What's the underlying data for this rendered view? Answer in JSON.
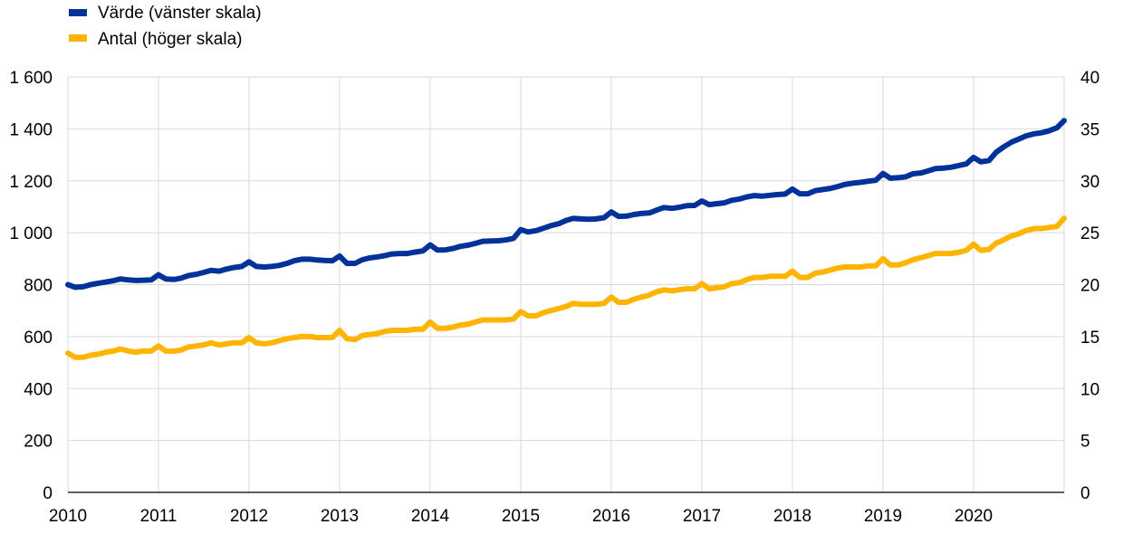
{
  "chart_data": {
    "type": "line",
    "legend_placement": "top-left",
    "grid": true,
    "x_tick_labels": [
      "2010",
      "2011",
      "2012",
      "2013",
      "2014",
      "2015",
      "2016",
      "2017",
      "2018",
      "2019",
      "2020"
    ],
    "x_range": [
      2010,
      2021
    ],
    "y_left": {
      "lim": [
        0,
        1600
      ],
      "ticks": [
        0,
        200,
        400,
        600,
        800,
        1000,
        1200,
        1400,
        1600
      ],
      "tick_labels": [
        "0",
        "200",
        "400",
        "600",
        "800",
        "1 000",
        "1 200",
        "1 400",
        "1 600"
      ]
    },
    "y_right": {
      "lim": [
        0,
        40
      ],
      "ticks": [
        0,
        5,
        10,
        15,
        20,
        25,
        30,
        35,
        40
      ],
      "tick_labels": [
        "0",
        "5",
        "10",
        "15",
        "20",
        "25",
        "30",
        "35",
        "40"
      ]
    },
    "series": [
      {
        "name": "Värde (vänster skala)",
        "axis": "left",
        "color": "#003299",
        "x": [
          2010.0,
          2010.08,
          2010.17,
          2010.25,
          2010.33,
          2010.42,
          2010.5,
          2010.58,
          2010.67,
          2010.75,
          2010.83,
          2010.92,
          2011.0,
          2011.08,
          2011.17,
          2011.25,
          2011.33,
          2011.42,
          2011.5,
          2011.58,
          2011.67,
          2011.75,
          2011.83,
          2011.92,
          2012.0,
          2012.08,
          2012.17,
          2012.25,
          2012.33,
          2012.42,
          2012.5,
          2012.58,
          2012.67,
          2012.75,
          2012.83,
          2012.92,
          2013.0,
          2013.08,
          2013.17,
          2013.25,
          2013.33,
          2013.42,
          2013.5,
          2013.58,
          2013.67,
          2013.75,
          2013.83,
          2013.92,
          2014.0,
          2014.08,
          2014.17,
          2014.25,
          2014.33,
          2014.42,
          2014.5,
          2014.58,
          2014.67,
          2014.75,
          2014.83,
          2014.92,
          2015.0,
          2015.08,
          2015.17,
          2015.25,
          2015.33,
          2015.42,
          2015.5,
          2015.58,
          2015.67,
          2015.75,
          2015.83,
          2015.92,
          2016.0,
          2016.08,
          2016.17,
          2016.25,
          2016.33,
          2016.42,
          2016.5,
          2016.58,
          2016.67,
          2016.75,
          2016.83,
          2016.92,
          2017.0,
          2017.08,
          2017.17,
          2017.25,
          2017.33,
          2017.42,
          2017.5,
          2017.58,
          2017.67,
          2017.75,
          2017.83,
          2017.92,
          2018.0,
          2018.08,
          2018.17,
          2018.25,
          2018.33,
          2018.42,
          2018.5,
          2018.58,
          2018.67,
          2018.75,
          2018.83,
          2018.92,
          2019.0,
          2019.08,
          2019.17,
          2019.25,
          2019.33,
          2019.42,
          2019.5,
          2019.58,
          2019.67,
          2019.75,
          2019.83,
          2019.92,
          2020.0,
          2020.08,
          2020.17,
          2020.25,
          2020.33,
          2020.42,
          2020.5,
          2020.58,
          2020.67,
          2020.75,
          2020.83,
          2020.92,
          2021.0
        ],
        "values": [
          800,
          790,
          792,
          800,
          805,
          810,
          815,
          822,
          818,
          816,
          817,
          818,
          838,
          822,
          820,
          825,
          835,
          840,
          847,
          855,
          852,
          860,
          866,
          870,
          888,
          870,
          868,
          870,
          874,
          882,
          892,
          898,
          898,
          895,
          893,
          892,
          910,
          882,
          882,
          896,
          903,
          907,
          912,
          918,
          920,
          920,
          925,
          930,
          953,
          933,
          934,
          939,
          947,
          952,
          959,
          967,
          968,
          969,
          972,
          978,
          1012,
          1003,
          1008,
          1017,
          1027,
          1035,
          1047,
          1055,
          1053,
          1052,
          1053,
          1058,
          1080,
          1063,
          1064,
          1070,
          1074,
          1076,
          1087,
          1097,
          1094,
          1098,
          1104,
          1105,
          1122,
          1108,
          1112,
          1115,
          1125,
          1130,
          1138,
          1143,
          1141,
          1144,
          1147,
          1149,
          1168,
          1150,
          1150,
          1162,
          1166,
          1171,
          1178,
          1186,
          1191,
          1194,
          1198,
          1202,
          1228,
          1210,
          1212,
          1215,
          1227,
          1230,
          1238,
          1247,
          1249,
          1252,
          1258,
          1265,
          1290,
          1273,
          1278,
          1310,
          1330,
          1349,
          1361,
          1373,
          1381,
          1385,
          1392,
          1404,
          1432
        ]
      },
      {
        "name": "Antal (höger skala)",
        "axis": "right",
        "color": "#ffb400",
        "x": [
          2010.0,
          2010.08,
          2010.17,
          2010.25,
          2010.33,
          2010.42,
          2010.5,
          2010.58,
          2010.67,
          2010.75,
          2010.83,
          2010.92,
          2011.0,
          2011.08,
          2011.17,
          2011.25,
          2011.33,
          2011.42,
          2011.5,
          2011.58,
          2011.67,
          2011.75,
          2011.83,
          2011.92,
          2012.0,
          2012.08,
          2012.17,
          2012.25,
          2012.33,
          2012.42,
          2012.5,
          2012.58,
          2012.67,
          2012.75,
          2012.83,
          2012.92,
          2013.0,
          2013.08,
          2013.17,
          2013.25,
          2013.33,
          2013.42,
          2013.5,
          2013.58,
          2013.67,
          2013.75,
          2013.83,
          2013.92,
          2014.0,
          2014.08,
          2014.17,
          2014.25,
          2014.33,
          2014.42,
          2014.5,
          2014.58,
          2014.67,
          2014.75,
          2014.83,
          2014.92,
          2015.0,
          2015.08,
          2015.17,
          2015.25,
          2015.33,
          2015.42,
          2015.5,
          2015.58,
          2015.67,
          2015.75,
          2015.83,
          2015.92,
          2016.0,
          2016.08,
          2016.17,
          2016.25,
          2016.33,
          2016.42,
          2016.5,
          2016.58,
          2016.67,
          2016.75,
          2016.83,
          2016.92,
          2017.0,
          2017.08,
          2017.17,
          2017.25,
          2017.33,
          2017.42,
          2017.5,
          2017.58,
          2017.67,
          2017.75,
          2017.83,
          2017.92,
          2018.0,
          2018.08,
          2018.17,
          2018.25,
          2018.33,
          2018.42,
          2018.5,
          2018.58,
          2018.67,
          2018.75,
          2018.83,
          2018.92,
          2019.0,
          2019.08,
          2019.17,
          2019.25,
          2019.33,
          2019.42,
          2019.5,
          2019.58,
          2019.67,
          2019.75,
          2019.83,
          2019.92,
          2020.0,
          2020.08,
          2020.17,
          2020.25,
          2020.33,
          2020.42,
          2020.5,
          2020.58,
          2020.67,
          2020.75,
          2020.83,
          2020.92,
          2021.0
        ],
        "values": [
          13.4,
          13.0,
          13.0,
          13.2,
          13.3,
          13.5,
          13.6,
          13.8,
          13.6,
          13.5,
          13.6,
          13.6,
          14.1,
          13.6,
          13.6,
          13.7,
          14.0,
          14.1,
          14.2,
          14.4,
          14.2,
          14.3,
          14.4,
          14.4,
          14.9,
          14.4,
          14.3,
          14.4,
          14.6,
          14.8,
          14.9,
          15.0,
          15.0,
          14.9,
          14.9,
          14.9,
          15.6,
          14.8,
          14.7,
          15.1,
          15.2,
          15.3,
          15.5,
          15.6,
          15.6,
          15.6,
          15.7,
          15.7,
          16.4,
          15.8,
          15.8,
          15.9,
          16.1,
          16.2,
          16.4,
          16.6,
          16.6,
          16.6,
          16.6,
          16.7,
          17.4,
          17.0,
          17.0,
          17.3,
          17.5,
          17.7,
          17.9,
          18.2,
          18.1,
          18.1,
          18.1,
          18.2,
          18.8,
          18.3,
          18.3,
          18.6,
          18.8,
          19.0,
          19.3,
          19.5,
          19.4,
          19.5,
          19.6,
          19.6,
          20.1,
          19.6,
          19.7,
          19.8,
          20.1,
          20.2,
          20.5,
          20.7,
          20.7,
          20.8,
          20.8,
          20.8,
          21.3,
          20.7,
          20.7,
          21.1,
          21.2,
          21.4,
          21.6,
          21.7,
          21.7,
          21.7,
          21.8,
          21.8,
          22.5,
          21.9,
          21.9,
          22.1,
          22.4,
          22.6,
          22.8,
          23.0,
          23.0,
          23.0,
          23.1,
          23.3,
          23.9,
          23.3,
          23.4,
          24.0,
          24.3,
          24.7,
          24.9,
          25.2,
          25.4,
          25.4,
          25.5,
          25.6,
          26.4
        ]
      }
    ]
  }
}
